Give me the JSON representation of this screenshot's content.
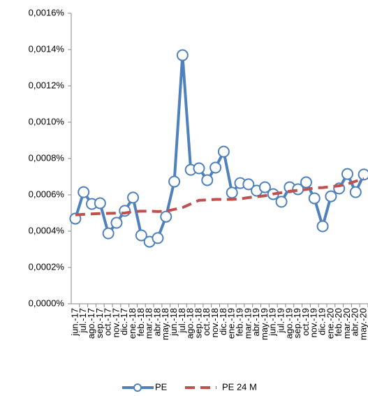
{
  "chart_data": {
    "type": "line",
    "categories": [
      "jun.-17",
      "jul.-17",
      "ago.-17",
      "sep.-17",
      "oct.-17",
      "nov.-17",
      "dic.-17",
      "ene.-18",
      "feb.-18",
      "mar.-18",
      "abr.-18",
      "may.-18",
      "jun.-18",
      "jul.-18",
      "ago.-18",
      "sep.-18",
      "oct.-18",
      "nov.-18",
      "dic.-18",
      "ene.-19",
      "feb.-19",
      "mar.-19",
      "abr.-19",
      "may.-19",
      "jun.-19",
      "jul.-19",
      "ago.-19",
      "sep.-19",
      "oct.-19",
      "nov.-19",
      "dic.-19",
      "ene.-20",
      "feb.-20",
      "mar.-20",
      "abr.-20",
      "may.-20"
    ],
    "series": [
      {
        "name": "PE",
        "color": "#4f81bd",
        "style": "solid-marker",
        "values": [
          0.000469,
          0.000615,
          0.00055,
          0.000554,
          0.000388,
          0.000446,
          0.000512,
          0.000585,
          0.000377,
          0.000342,
          0.000362,
          0.00048,
          0.000673,
          0.001369,
          0.000738,
          0.000746,
          0.000681,
          0.00075,
          0.000838,
          0.000612,
          0.000665,
          0.000658,
          0.000623,
          0.000642,
          0.000604,
          0.000562,
          0.000642,
          0.000631,
          0.000669,
          0.000581,
          0.000427,
          0.000592,
          0.000635,
          0.000715,
          0.000615,
          0.000712
        ]
      },
      {
        "name": "PE 24 M",
        "color": "#c0504d",
        "style": "dashed",
        "values": [
          0.00049,
          0.000493,
          0.000495,
          0.000497,
          0.000498,
          0.000499,
          0.0005,
          0.000508,
          0.00051,
          0.00051,
          0.000508,
          0.00051,
          0.00052,
          0.00053,
          0.00055,
          0.00057,
          0.000572,
          0.000575,
          0.000575,
          0.000575,
          0.000578,
          0.000585,
          0.00059,
          0.000595,
          0.000605,
          0.000612,
          0.00062,
          0.000625,
          0.00063,
          0.000638,
          0.00064,
          0.000645,
          0.00065,
          0.00066,
          0.000675,
          0.00069
        ]
      }
    ],
    "ylim": [
      0,
      0.0016
    ],
    "yticks": [
      {
        "value": 0,
        "label": "0,0000%"
      },
      {
        "value": 0.0002,
        "label": "0,0002%"
      },
      {
        "value": 0.0004,
        "label": "0,0004%"
      },
      {
        "value": 0.0006,
        "label": "0,0006%"
      },
      {
        "value": 0.0008,
        "label": "0,0008%"
      },
      {
        "value": 0.001,
        "label": "0,0010%"
      },
      {
        "value": 0.0012,
        "label": "0,0012%"
      },
      {
        "value": 0.0014,
        "label": "0,0014%"
      },
      {
        "value": 0.0016,
        "label": "0,0016%"
      }
    ],
    "grid": false,
    "legend": "bottom"
  }
}
